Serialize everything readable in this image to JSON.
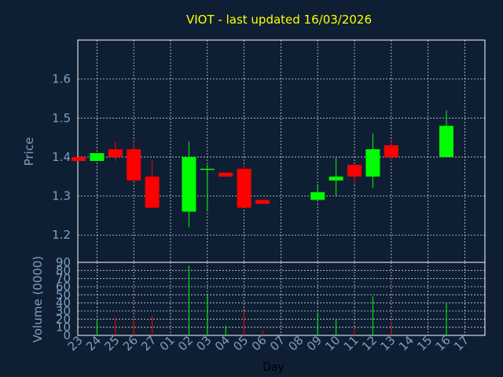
{
  "chart_data": [
    {
      "type": "candlestick",
      "title": "VIOT - last updated 16/03/2026",
      "ylabel": "Price",
      "ylim": [
        1.13,
        1.7
      ],
      "yticks": [
        "1.2",
        "1.3",
        "1.4",
        "1.5",
        "1.6"
      ],
      "up_color": "#00ff00",
      "down_color": "#ff0000",
      "grid": true,
      "candles": [
        {
          "day": "23",
          "open": 1.4,
          "close": 1.39,
          "high": 1.4,
          "low": 1.39
        },
        {
          "day": "24",
          "open": 1.39,
          "close": 1.41,
          "high": 1.41,
          "low": 1.39
        },
        {
          "day": "25",
          "open": 1.42,
          "close": 1.4,
          "high": 1.44,
          "low": 1.39
        },
        {
          "day": "26",
          "open": 1.42,
          "close": 1.34,
          "high": 1.44,
          "low": 1.34
        },
        {
          "day": "27",
          "open": 1.35,
          "close": 1.27,
          "high": 1.39,
          "low": 1.27
        },
        {
          "day": "02",
          "open": 1.26,
          "close": 1.4,
          "high": 1.44,
          "low": 1.22
        },
        {
          "day": "03",
          "open": 1.37,
          "close": 1.37,
          "high": 1.38,
          "low": 1.26
        },
        {
          "day": "04",
          "open": 1.36,
          "close": 1.35,
          "high": 1.36,
          "low": 1.35
        },
        {
          "day": "05",
          "open": 1.37,
          "close": 1.27,
          "high": 1.38,
          "low": 1.27
        },
        {
          "day": "06",
          "open": 1.29,
          "close": 1.28,
          "high": 1.29,
          "low": 1.28
        },
        {
          "day": "09",
          "open": 1.29,
          "close": 1.31,
          "high": 1.33,
          "low": 1.29
        },
        {
          "day": "10",
          "open": 1.34,
          "close": 1.35,
          "high": 1.4,
          "low": 1.3
        },
        {
          "day": "11",
          "open": 1.38,
          "close": 1.35,
          "high": 1.38,
          "low": 1.33
        },
        {
          "day": "12",
          "open": 1.35,
          "close": 1.42,
          "high": 1.46,
          "low": 1.32
        },
        {
          "day": "13",
          "open": 1.43,
          "close": 1.4,
          "high": 1.44,
          "low": 1.39
        },
        {
          "day": "16",
          "open": 1.4,
          "close": 1.48,
          "high": 1.52,
          "low": 1.4
        }
      ]
    },
    {
      "type": "bar",
      "ylabel": "Volume (0000)",
      "xlabel": "Day",
      "ylim": [
        0,
        90
      ],
      "yticks": [
        "0",
        "10",
        "20",
        "30",
        "40",
        "50",
        "60",
        "70",
        "80",
        "90"
      ],
      "categories": [
        "23",
        "24",
        "25",
        "26",
        "27",
        "01",
        "02",
        "03",
        "04",
        "05",
        "06",
        "07",
        "08",
        "09",
        "10",
        "11",
        "12",
        "13",
        "14",
        "15",
        "16",
        "17"
      ],
      "volumes": [
        {
          "day": "24",
          "value": 20,
          "direction": "up"
        },
        {
          "day": "25",
          "value": 22,
          "direction": "down"
        },
        {
          "day": "26",
          "value": 20,
          "direction": "down"
        },
        {
          "day": "27",
          "value": 24,
          "direction": "down"
        },
        {
          "day": "02",
          "value": 86,
          "direction": "up"
        },
        {
          "day": "03",
          "value": 50,
          "direction": "up"
        },
        {
          "day": "04",
          "value": 12,
          "direction": "up"
        },
        {
          "day": "05",
          "value": 30,
          "direction": "down"
        },
        {
          "day": "06",
          "value": 6,
          "direction": "down"
        },
        {
          "day": "09",
          "value": 28,
          "direction": "up"
        },
        {
          "day": "10",
          "value": 20,
          "direction": "up"
        },
        {
          "day": "11",
          "value": 8,
          "direction": "down"
        },
        {
          "day": "12",
          "value": 48,
          "direction": "up"
        },
        {
          "day": "13",
          "value": 16,
          "direction": "down"
        },
        {
          "day": "16",
          "value": 40,
          "direction": "up"
        }
      ]
    }
  ]
}
